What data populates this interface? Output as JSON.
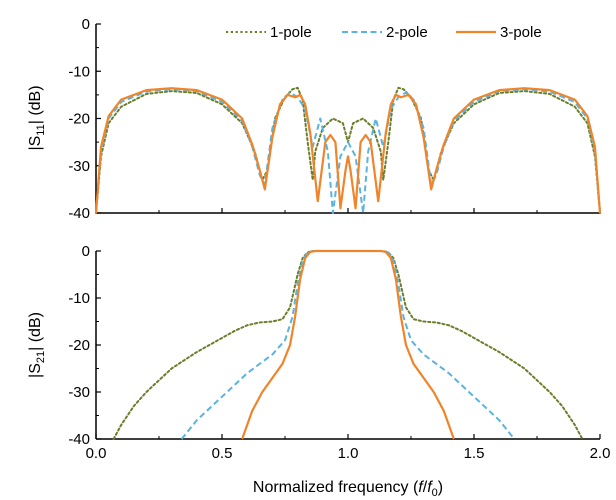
{
  "chart_data": [
    {
      "type": "line",
      "ylabel": "|S11| (dB)",
      "ylabel_main": "|S",
      "ylabel_sub": "11",
      "ylabel_tail": "| (dB)",
      "xlim": [
        0.0,
        2.0
      ],
      "ylim": [
        -40,
        0
      ],
      "yticks": [
        0,
        -10,
        -20,
        -30,
        -40
      ],
      "ytick_labels": [
        "0",
        "-10",
        "-20",
        "-30",
        "-40"
      ],
      "legend_placement": "top-right",
      "series": [
        {
          "name": "1-pole",
          "color": "#6b7f2a",
          "style": "dotted",
          "x": [
            0.0,
            0.02,
            0.05,
            0.1,
            0.2,
            0.3,
            0.4,
            0.5,
            0.58,
            0.63,
            0.66,
            0.68,
            0.71,
            0.75,
            0.78,
            0.8,
            0.82,
            0.84,
            0.86,
            0.87,
            0.9,
            0.94,
            0.98,
            1.0,
            1.02,
            1.06,
            1.1,
            1.13,
            1.14,
            1.16,
            1.18,
            1.2,
            1.22,
            1.25,
            1.29,
            1.32,
            1.34,
            1.37,
            1.42,
            1.5,
            1.6,
            1.7,
            1.8,
            1.9,
            1.95,
            1.98,
            2.0
          ],
          "y": [
            -40,
            -28,
            -21,
            -17.5,
            -14.8,
            -14.2,
            -14.6,
            -17,
            -21,
            -27,
            -33,
            -31,
            -20,
            -15.5,
            -13.8,
            -13.5,
            -16,
            -25,
            -33,
            -27,
            -22,
            -20,
            -21,
            -25,
            -21,
            -20,
            -22,
            -27,
            -33,
            -25,
            -16,
            -13.5,
            -13.8,
            -15.5,
            -20,
            -31,
            -33,
            -27,
            -21,
            -17,
            -14.6,
            -14.2,
            -14.8,
            -17.5,
            -21,
            -28,
            -40
          ]
        },
        {
          "name": "2-pole",
          "color": "#5ab4e0",
          "style": "dashed",
          "x": [
            0.0,
            0.02,
            0.05,
            0.1,
            0.2,
            0.3,
            0.4,
            0.5,
            0.58,
            0.62,
            0.65,
            0.67,
            0.7,
            0.74,
            0.77,
            0.8,
            0.83,
            0.86,
            0.89,
            0.92,
            0.94,
            0.97,
            1.0,
            1.03,
            1.06,
            1.08,
            1.11,
            1.14,
            1.17,
            1.2,
            1.23,
            1.26,
            1.3,
            1.33,
            1.35,
            1.38,
            1.42,
            1.5,
            1.6,
            1.7,
            1.8,
            1.9,
            1.95,
            1.98,
            2.0
          ],
          "y": [
            -40,
            -27,
            -20,
            -16.5,
            -14.3,
            -13.8,
            -14.2,
            -16.5,
            -20.5,
            -26,
            -32,
            -34,
            -22,
            -16,
            -14.5,
            -15.5,
            -18,
            -26,
            -20,
            -27,
            -40,
            -28,
            -25,
            -28,
            -40,
            -27,
            -20,
            -26,
            -18,
            -15.5,
            -14.5,
            -16,
            -22,
            -34,
            -32,
            -26,
            -20.5,
            -16.5,
            -14.2,
            -13.8,
            -14.3,
            -16.5,
            -20,
            -27,
            -40
          ]
        },
        {
          "name": "3-pole",
          "color": "#f0842a",
          "style": "solid",
          "x": [
            0.0,
            0.02,
            0.05,
            0.1,
            0.2,
            0.3,
            0.4,
            0.5,
            0.58,
            0.62,
            0.65,
            0.67,
            0.7,
            0.73,
            0.76,
            0.79,
            0.81,
            0.83,
            0.85,
            0.88,
            0.91,
            0.93,
            0.95,
            0.97,
            0.99,
            1.0,
            1.01,
            1.03,
            1.05,
            1.07,
            1.09,
            1.12,
            1.15,
            1.17,
            1.19,
            1.21,
            1.24,
            1.27,
            1.3,
            1.33,
            1.35,
            1.38,
            1.42,
            1.5,
            1.6,
            1.7,
            1.8,
            1.9,
            1.95,
            1.98,
            2.0
          ],
          "y": [
            -40,
            -26,
            -19.5,
            -16,
            -14,
            -13.6,
            -14,
            -16,
            -20,
            -25.5,
            -31,
            -35,
            -24,
            -17,
            -15,
            -15.5,
            -15,
            -17,
            -23,
            -37.5,
            -25,
            -23.5,
            -25,
            -39,
            -31,
            -28,
            -31,
            -39,
            -25,
            -23.5,
            -25,
            -37.5,
            -23,
            -17,
            -15,
            -15.5,
            -15,
            -17,
            -24,
            -35,
            -31,
            -25.5,
            -20,
            -16,
            -14,
            -13.6,
            -14,
            -16,
            -19.5,
            -26,
            -40
          ]
        }
      ]
    },
    {
      "type": "line",
      "ylabel": "|S21| (dB)",
      "ylabel_main": "|S",
      "ylabel_sub": "21",
      "ylabel_tail": "| (dB)",
      "xlabel": "Normalized frequency (f/f0)",
      "xlabel_main": "Normalized frequency (",
      "xlabel_f": "f",
      "xlabel_slash": "/",
      "xlabel_f0": "f",
      "xlabel_sub0": "0",
      "xlabel_close": ")",
      "xlim": [
        0.0,
        2.0
      ],
      "ylim": [
        -40,
        0
      ],
      "xticks": [
        0.0,
        0.5,
        1.0,
        1.5,
        2.0
      ],
      "xtick_labels": [
        "0.0",
        "0.5",
        "1.0",
        "1.5",
        "2.0"
      ],
      "yticks": [
        0,
        -10,
        -20,
        -30,
        -40
      ],
      "ytick_labels": [
        "0",
        "-10",
        "-20",
        "-30",
        "-40"
      ],
      "series": [
        {
          "name": "1-pole",
          "color": "#6b7f2a",
          "style": "dotted",
          "x": [
            0.07,
            0.1,
            0.15,
            0.2,
            0.3,
            0.4,
            0.5,
            0.55,
            0.6,
            0.65,
            0.7,
            0.74,
            0.77,
            0.8,
            0.82,
            0.84,
            0.86,
            0.9,
            1.0,
            1.1,
            1.14,
            1.16,
            1.18,
            1.2,
            1.23,
            1.26,
            1.3,
            1.35,
            1.4,
            1.45,
            1.5,
            1.6,
            1.7,
            1.8,
            1.85,
            1.9,
            1.93
          ],
          "y": [
            -40,
            -37,
            -33,
            -30,
            -25,
            -21.5,
            -18.5,
            -17,
            -15.8,
            -15.2,
            -15,
            -14.5,
            -12,
            -5,
            -1.5,
            -0.3,
            0,
            0,
            0,
            0,
            0,
            -0.3,
            -1.5,
            -5,
            -12,
            -14.5,
            -15,
            -15.2,
            -15.8,
            -17,
            -18.5,
            -21.5,
            -25,
            -30,
            -33,
            -37,
            -40
          ]
        },
        {
          "name": "2-pole",
          "color": "#5ab4e0",
          "style": "dashed",
          "x": [
            0.34,
            0.4,
            0.5,
            0.6,
            0.7,
            0.75,
            0.78,
            0.8,
            0.82,
            0.84,
            0.86,
            0.9,
            1.0,
            1.1,
            1.14,
            1.16,
            1.18,
            1.2,
            1.22,
            1.25,
            1.3,
            1.4,
            1.5,
            1.6,
            1.66
          ],
          "y": [
            -40,
            -36,
            -31,
            -26,
            -22,
            -19,
            -14,
            -7,
            -2,
            -0.3,
            0,
            0,
            0,
            0,
            0,
            -0.3,
            -2,
            -7,
            -14,
            -19,
            -22,
            -26,
            -31,
            -36,
            -40
          ]
        },
        {
          "name": "3-pole",
          "color": "#f0842a",
          "style": "solid",
          "x": [
            0.58,
            0.62,
            0.66,
            0.7,
            0.74,
            0.77,
            0.79,
            0.81,
            0.83,
            0.85,
            0.87,
            0.9,
            1.0,
            1.1,
            1.13,
            1.15,
            1.17,
            1.19,
            1.21,
            1.23,
            1.26,
            1.3,
            1.34,
            1.38,
            1.42
          ],
          "y": [
            -40,
            -34,
            -30,
            -27,
            -24,
            -20,
            -14,
            -6,
            -1.5,
            -0.2,
            0,
            0,
            0,
            0,
            0,
            -0.2,
            -1.5,
            -6,
            -14,
            -20,
            -24,
            -27,
            -30,
            -34,
            -40
          ]
        }
      ]
    }
  ]
}
